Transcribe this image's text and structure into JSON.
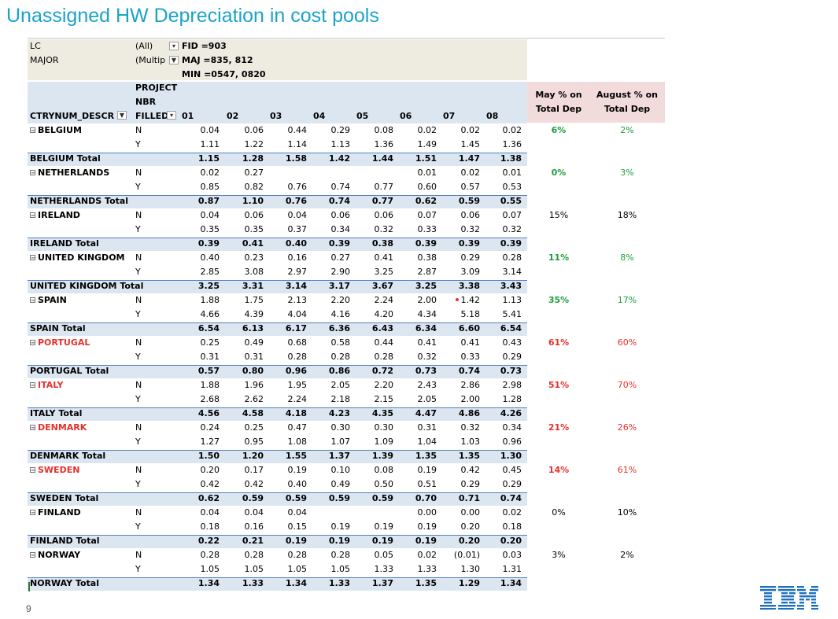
{
  "title": "Unassigned HW Depreciation in cost pools",
  "page_number": "9",
  "logo": "IBM",
  "filters": [
    {
      "label": "LC",
      "value": "(All)"
    },
    {
      "label": "MAJOR",
      "value": "(Multip"
    }
  ],
  "notes": [
    "FID =903",
    "MAJ =835, 812",
    "MIN =0547, 0820"
  ],
  "header": {
    "row_field": "CTRYNUM_DESCR",
    "project_lines": [
      "PROJECT",
      "NBR",
      "FILLED"
    ],
    "months": [
      "01",
      "02",
      "03",
      "04",
      "05",
      "06",
      "07",
      "08"
    ],
    "may_lines": [
      "May % on",
      "Total Dep"
    ],
    "aug_lines": [
      "August % on",
      "Total Dep"
    ]
  },
  "countries": [
    {
      "name": "BELGIUM",
      "name_color": "black",
      "total_label": "BELGIUM Total",
      "n": [
        "0.04",
        "0.06",
        "0.44",
        "0.29",
        "0.08",
        "0.02",
        "0.02",
        "0.02"
      ],
      "y": [
        "1.11",
        "1.22",
        "1.14",
        "1.13",
        "1.36",
        "1.49",
        "1.45",
        "1.36"
      ],
      "t": [
        "1.15",
        "1.28",
        "1.58",
        "1.42",
        "1.44",
        "1.51",
        "1.47",
        "1.38"
      ],
      "may": "6%",
      "may_color": "green",
      "aug": "2%",
      "aug_color": "green"
    },
    {
      "name": "NETHERLANDS",
      "name_color": "black",
      "total_label": "NETHERLANDS Total",
      "n": [
        "0.02",
        "0.27",
        "",
        "",
        "",
        "0.01",
        "0.02",
        "0.01"
      ],
      "y": [
        "0.85",
        "0.82",
        "0.76",
        "0.74",
        "0.77",
        "0.60",
        "0.57",
        "0.53"
      ],
      "t": [
        "0.87",
        "1.10",
        "0.76",
        "0.74",
        "0.77",
        "0.62",
        "0.59",
        "0.55"
      ],
      "may": "0%",
      "may_color": "green",
      "aug": "3%",
      "aug_color": "green"
    },
    {
      "name": "IRELAND",
      "name_color": "black",
      "total_label": "IRELAND Total",
      "n": [
        "0.04",
        "0.06",
        "0.04",
        "0.06",
        "0.06",
        "0.07",
        "0.06",
        "0.07"
      ],
      "y": [
        "0.35",
        "0.35",
        "0.37",
        "0.34",
        "0.32",
        "0.33",
        "0.32",
        "0.32"
      ],
      "t": [
        "0.39",
        "0.41",
        "0.40",
        "0.39",
        "0.38",
        "0.39",
        "0.39",
        "0.39"
      ],
      "may": "15%",
      "may_color": "black",
      "aug": "18%",
      "aug_color": "black"
    },
    {
      "name": "UNITED KINGDOM",
      "name_color": "black",
      "total_label": "UNITED KINGDOM Total",
      "n": [
        "0.40",
        "0.23",
        "0.16",
        "0.27",
        "0.41",
        "0.38",
        "0.29",
        "0.28"
      ],
      "y": [
        "2.85",
        "3.08",
        "2.97",
        "2.90",
        "3.25",
        "2.87",
        "3.09",
        "3.14"
      ],
      "t": [
        "3.25",
        "3.31",
        "3.14",
        "3.17",
        "3.67",
        "3.25",
        "3.38",
        "3.43"
      ],
      "may": "11%",
      "may_color": "green",
      "aug": "8%",
      "aug_color": "green"
    },
    {
      "name": "SPAIN",
      "name_color": "black",
      "total_label": "SPAIN Total",
      "n": [
        "1.88",
        "1.75",
        "2.13",
        "2.20",
        "2.24",
        "2.00",
        "1.42",
        "1.13"
      ],
      "y": [
        "4.66",
        "4.39",
        "4.04",
        "4.16",
        "4.20",
        "4.34",
        "5.18",
        "5.41"
      ],
      "t": [
        "6.54",
        "6.13",
        "6.17",
        "6.36",
        "6.43",
        "6.34",
        "6.60",
        "6.54"
      ],
      "may": "35%",
      "may_color": "green",
      "aug": "17%",
      "aug_color": "green"
    },
    {
      "name": "PORTUGAL",
      "name_color": "red",
      "total_label": "PORTUGAL Total",
      "n": [
        "0.25",
        "0.49",
        "0.68",
        "0.58",
        "0.44",
        "0.41",
        "0.41",
        "0.43"
      ],
      "y": [
        "0.31",
        "0.31",
        "0.28",
        "0.28",
        "0.28",
        "0.32",
        "0.33",
        "0.29"
      ],
      "t": [
        "0.57",
        "0.80",
        "0.96",
        "0.86",
        "0.72",
        "0.73",
        "0.74",
        "0.73"
      ],
      "may": "61%",
      "may_color": "red",
      "aug": "60%",
      "aug_color": "red"
    },
    {
      "name": "ITALY",
      "name_color": "red",
      "total_label": "ITALY Total",
      "n": [
        "1.88",
        "1.96",
        "1.95",
        "2.05",
        "2.20",
        "2.43",
        "2.86",
        "2.98"
      ],
      "y": [
        "2.68",
        "2.62",
        "2.24",
        "2.18",
        "2.15",
        "2.05",
        "2.00",
        "1.28"
      ],
      "t": [
        "4.56",
        "4.58",
        "4.18",
        "4.23",
        "4.35",
        "4.47",
        "4.86",
        "4.26"
      ],
      "may": "51%",
      "may_color": "red",
      "aug": "70%",
      "aug_color": "red"
    },
    {
      "name": "DENMARK",
      "name_color": "red",
      "total_label": "DENMARK Total",
      "n": [
        "0.24",
        "0.25",
        "0.47",
        "0.30",
        "0.30",
        "0.31",
        "0.32",
        "0.34"
      ],
      "y": [
        "1.27",
        "0.95",
        "1.08",
        "1.07",
        "1.09",
        "1.04",
        "1.03",
        "0.96"
      ],
      "t": [
        "1.50",
        "1.20",
        "1.55",
        "1.37",
        "1.39",
        "1.35",
        "1.35",
        "1.30"
      ],
      "may": "21%",
      "may_color": "red",
      "aug": "26%",
      "aug_color": "red"
    },
    {
      "name": "SWEDEN",
      "name_color": "red",
      "total_label": "SWEDEN Total",
      "n": [
        "0.20",
        "0.17",
        "0.19",
        "0.10",
        "0.08",
        "0.19",
        "0.42",
        "0.45"
      ],
      "y": [
        "0.42",
        "0.42",
        "0.40",
        "0.49",
        "0.50",
        "0.51",
        "0.29",
        "0.29"
      ],
      "t": [
        "0.62",
        "0.59",
        "0.59",
        "0.59",
        "0.59",
        "0.70",
        "0.71",
        "0.74"
      ],
      "may": "14%",
      "may_color": "red",
      "aug": "61%",
      "aug_color": "red"
    },
    {
      "name": "FINLAND",
      "name_color": "black",
      "total_label": "FINLAND Total",
      "n": [
        "0.04",
        "0.04",
        "0.04",
        "",
        "",
        "0.00",
        "0.00",
        "0.02"
      ],
      "y": [
        "0.18",
        "0.16",
        "0.15",
        "0.19",
        "0.19",
        "0.19",
        "0.20",
        "0.18"
      ],
      "t": [
        "0.22",
        "0.21",
        "0.19",
        "0.19",
        "0.19",
        "0.19",
        "0.20",
        "0.20"
      ],
      "may": "0%",
      "may_color": "black",
      "aug": "10%",
      "aug_color": "black"
    },
    {
      "name": "NORWAY",
      "name_color": "black",
      "total_label": "NORWAY Total",
      "n": [
        "0.28",
        "0.28",
        "0.28",
        "0.28",
        "0.05",
        "0.02",
        "(0.01)",
        "0.03"
      ],
      "y": [
        "1.05",
        "1.05",
        "1.05",
        "1.05",
        "1.33",
        "1.33",
        "1.30",
        "1.31"
      ],
      "t": [
        "1.34",
        "1.33",
        "1.34",
        "1.33",
        "1.37",
        "1.35",
        "1.29",
        "1.34"
      ],
      "may": "3%",
      "may_color": "black",
      "aug": "2%",
      "aug_color": "black"
    }
  ],
  "row_labels": {
    "n": "N",
    "y": "Y"
  },
  "colors": {
    "title": "#1aa3c9",
    "header_blue": "#dce6f1",
    "pink": "#f2dcdb",
    "red": "#e8302a",
    "green": "#1e9e3e",
    "ibm_blue": "#1f70c1"
  }
}
